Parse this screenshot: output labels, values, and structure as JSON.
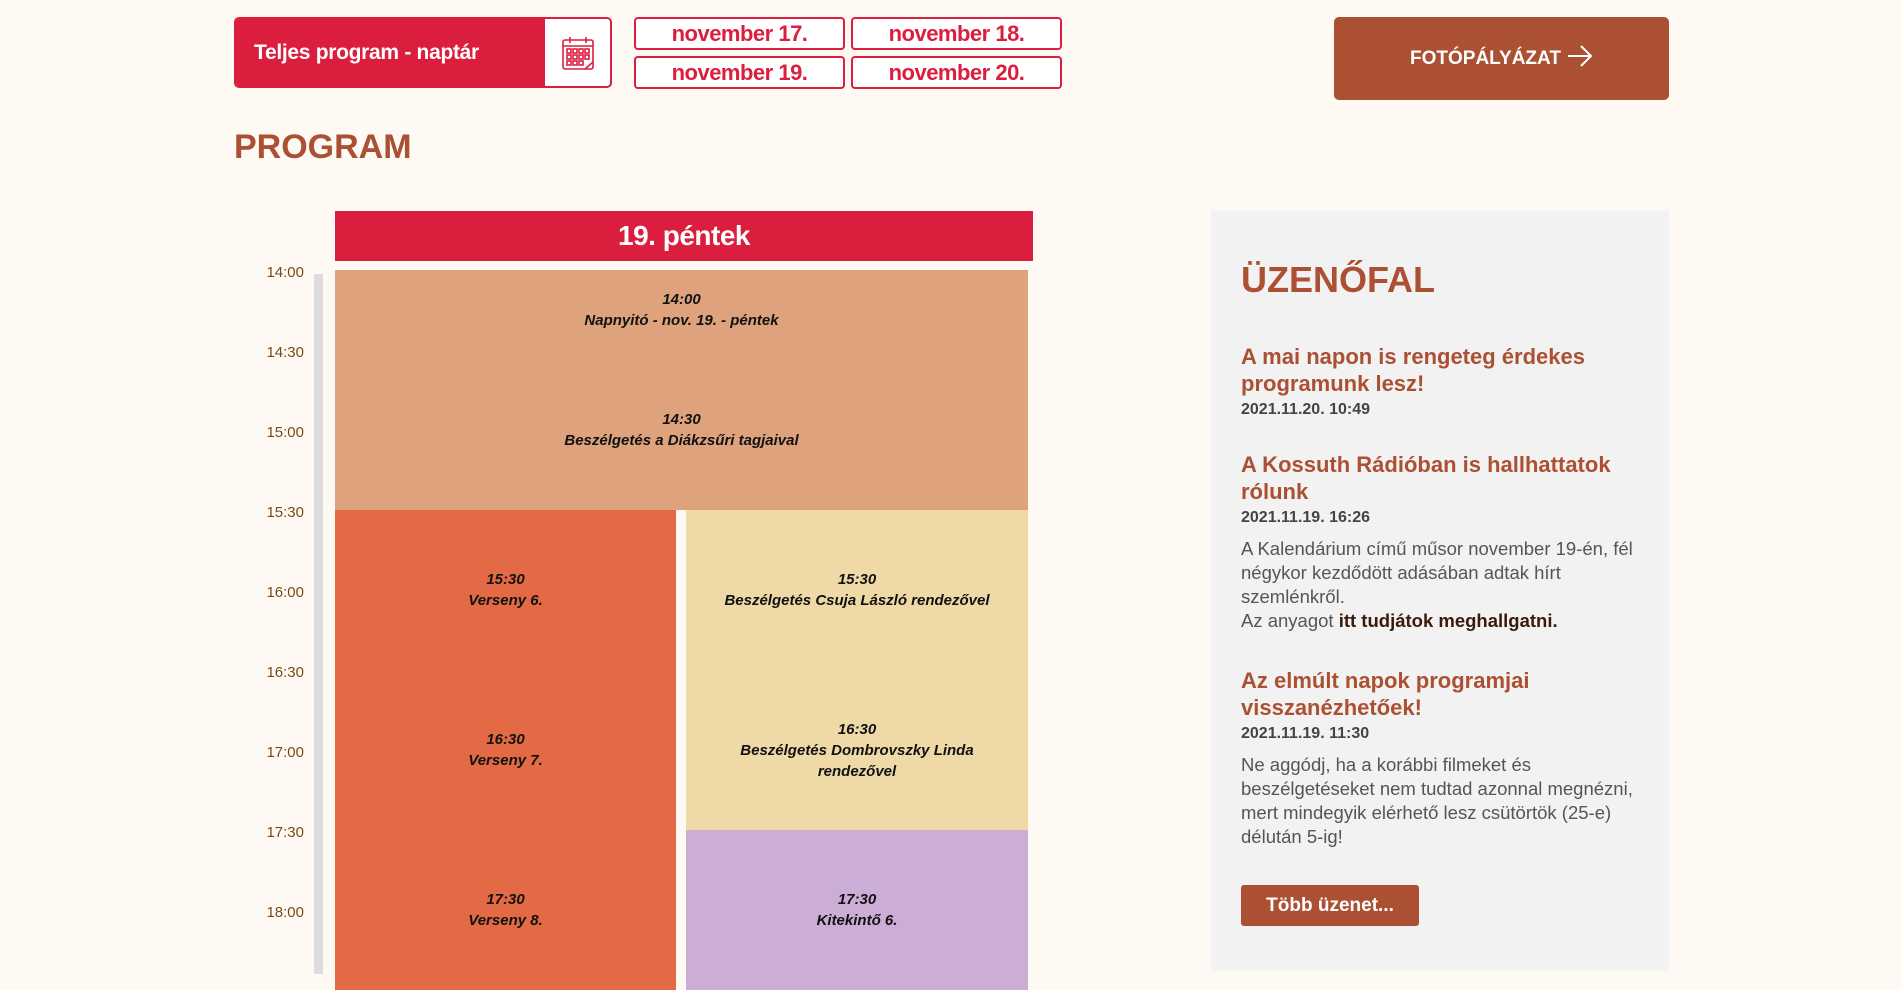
{
  "header": {
    "full_program_label": "Teljes program - naptár",
    "calendar_icon": "calendar-icon",
    "dates": [
      "november 17.",
      "november 18.",
      "november 19.",
      "november 20."
    ],
    "photo_contest_label": "FOTÓPÁLYÁZAT",
    "arrow_icon": "arrow-right-icon"
  },
  "page_title": "PROGRAM",
  "schedule": {
    "day": "19. péntek",
    "times": [
      "14:00",
      "14:30",
      "15:00",
      "15:30",
      "16:00",
      "16:30",
      "17:00",
      "17:30",
      "18:00"
    ],
    "events": [
      {
        "time": "14:00",
        "title": "Napnyitó - nov. 19. - péntek",
        "color": "#dea37c"
      },
      {
        "time": "14:30",
        "title": "Beszélgetés a Diákzsűri tagjaival",
        "color": "#dea37c"
      },
      {
        "time": "15:30",
        "title": "Verseny 6.",
        "color": "#e46a45"
      },
      {
        "time": "16:30",
        "title": "Verseny 7.",
        "color": "#e46a45"
      },
      {
        "time": "17:30",
        "title": "Verseny 8.",
        "color": "#e46a45"
      },
      {
        "time": "15:30",
        "title": "Beszélgetés Csuja László rendezővel",
        "color": "#eed9a7"
      },
      {
        "time": "16:30",
        "title": "Beszélgetés Dombrovszky Linda rendezővel",
        "color": "#eed9a7"
      },
      {
        "time": "17:30",
        "title": "Kitekintő 6.",
        "color": "#cbadd6"
      }
    ]
  },
  "sidebar": {
    "title": "ÜZENŐFAL",
    "posts": [
      {
        "title": "A mai napon is rengeteg érdekes programunk lesz!",
        "date": "2021.11.20. 10:49"
      },
      {
        "title": "A Kossuth Rádióban is hallhattatok rólunk",
        "date": "2021.11.19. 16:26",
        "text": "A Kalendárium című műsor november 19-én, fél négykor kezdődött adásában adtak hírt szemlénkről.",
        "text2": "Az anyagot ",
        "link": "itt tudjátok meghallgatni."
      },
      {
        "title": "Az elmúlt napok programjai visszanézhetőek!",
        "date": "2021.11.19. 11:30",
        "text": "Ne aggódj, ha a korábbi filmeket és beszélgetéseket nem tudtad azonnal megnézni, mert mindegyik elérhető lesz csütörtök (25-e) délután 5-ig!"
      }
    ],
    "more_label": "Több üzenet..."
  },
  "colors": {
    "accent_red": "#dc1e3e",
    "brand_brown": "#ab5032",
    "background": "#fef9f3",
    "sidebar_bg": "#f2f2f2"
  }
}
